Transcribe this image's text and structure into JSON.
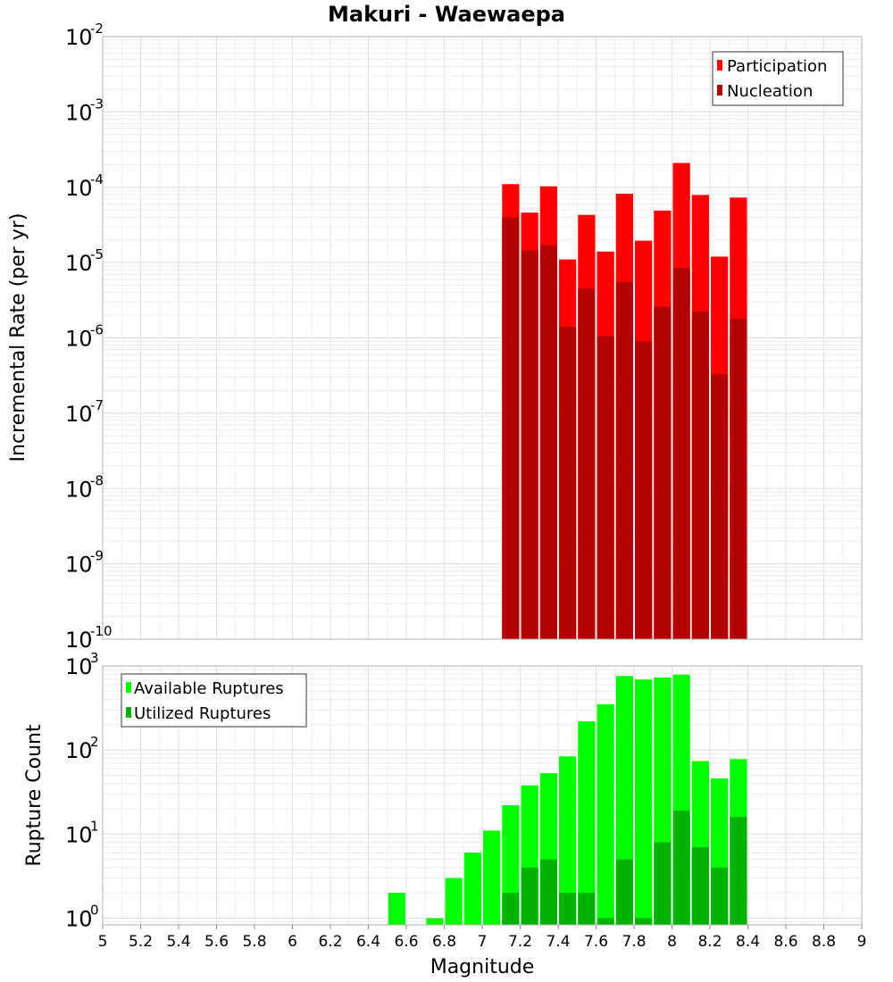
{
  "chart_data": [
    {
      "type": "bar",
      "title": "Makuri - Waewaepa",
      "xlabel": "",
      "ylabel": "Incremental Rate (per yr)",
      "yscale": "log",
      "ylim_exp": [
        -10,
        -2
      ],
      "xlim": [
        5,
        9
      ],
      "bin_width": 0.1,
      "legend_position": "top-right",
      "series": [
        {
          "name": "Participation",
          "color": "#ff0000",
          "x": [
            7.15,
            7.25,
            7.35,
            7.45,
            7.55,
            7.65,
            7.75,
            7.85,
            7.95,
            8.05,
            8.15,
            8.25,
            8.35
          ],
          "values": [
            0.00011,
            4.6e-05,
            0.000103,
            1.1e-05,
            4.3e-05,
            1.4e-05,
            8.2e-05,
            1.95e-05,
            4.9e-05,
            0.00021,
            7.9e-05,
            1.2e-05,
            7.3e-05
          ]
        },
        {
          "name": "Nucleation",
          "color": "#b30000",
          "x": [
            7.15,
            7.25,
            7.35,
            7.45,
            7.55,
            7.65,
            7.75,
            7.85,
            7.95,
            8.05,
            8.15,
            8.25,
            8.35
          ],
          "values": [
            4e-05,
            1.45e-05,
            1.7e-05,
            1.4e-06,
            4.5e-06,
            1.05e-06,
            5.5e-06,
            9e-07,
            2.6e-06,
            8.5e-06,
            2.25e-06,
            3.3e-07,
            1.8e-06
          ]
        }
      ],
      "ytick_labels": [
        {
          "base": "10",
          "exp": "-10"
        },
        {
          "base": "10",
          "exp": "-9"
        },
        {
          "base": "10",
          "exp": "-8"
        },
        {
          "base": "10",
          "exp": "-7"
        },
        {
          "base": "10",
          "exp": "-6"
        },
        {
          "base": "10",
          "exp": "-5"
        },
        {
          "base": "10",
          "exp": "-4"
        },
        {
          "base": "10",
          "exp": "-3"
        },
        {
          "base": "10",
          "exp": "-2"
        }
      ]
    },
    {
      "type": "bar",
      "title": "",
      "xlabel": "Magnitude",
      "ylabel": "Rupture Count",
      "yscale": "log",
      "ylim_exp": [
        -0.08,
        3
      ],
      "xlim": [
        5,
        9
      ],
      "bin_width": 0.1,
      "legend_position": "top-left",
      "series": [
        {
          "name": "Available Ruptures",
          "color": "#00ff00",
          "x": [
            6.55,
            6.75,
            6.85,
            6.95,
            7.05,
            7.15,
            7.25,
            7.35,
            7.45,
            7.55,
            7.65,
            7.75,
            7.85,
            7.95,
            8.05,
            8.15,
            8.25,
            8.35
          ],
          "values": [
            2,
            1,
            3,
            6,
            11,
            22,
            38,
            53,
            84,
            220,
            350,
            760,
            690,
            730,
            790,
            74,
            46,
            78
          ]
        },
        {
          "name": "Utilized Ruptures",
          "color": "#00b300",
          "x": [
            7.15,
            7.25,
            7.35,
            7.45,
            7.55,
            7.65,
            7.75,
            7.85,
            7.95,
            8.05,
            8.15,
            8.25,
            8.35
          ],
          "values": [
            2,
            4,
            5,
            2,
            2,
            1,
            5,
            1,
            8,
            19,
            7,
            4,
            16
          ]
        }
      ],
      "ytick_labels": [
        {
          "base": "10",
          "exp": "0"
        },
        {
          "base": "10",
          "exp": "1"
        },
        {
          "base": "10",
          "exp": "2"
        },
        {
          "base": "10",
          "exp": "3"
        }
      ],
      "xtick_labels": [
        "5",
        "5.2",
        "5.4",
        "5.6",
        "5.8",
        "6",
        "6.2",
        "6.4",
        "6.6",
        "6.8",
        "7",
        "7.2",
        "7.4",
        "7.6",
        "7.8",
        "8",
        "8.2",
        "8.4",
        "8.6",
        "8.8",
        "9"
      ]
    }
  ]
}
